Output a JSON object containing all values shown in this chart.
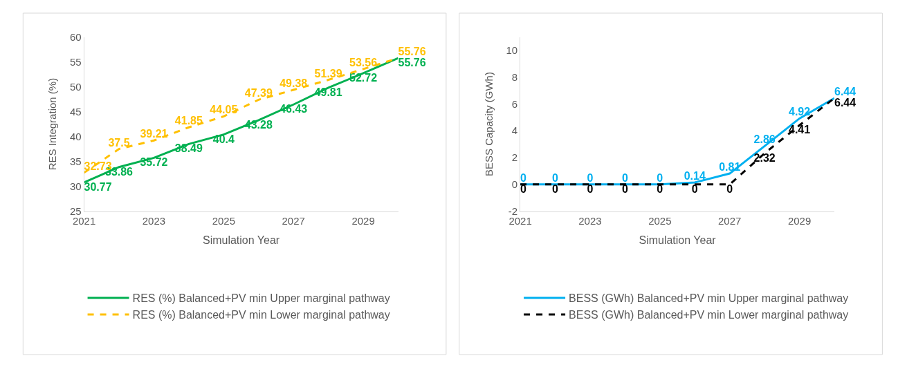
{
  "chart_data": [
    {
      "type": "line",
      "xlabel": "Simulation Year",
      "ylabel": "RES Integration (%)",
      "x": [
        2021,
        2022,
        2023,
        2024,
        2025,
        2026,
        2027,
        2028,
        2029,
        2030
      ],
      "xlim": [
        2021,
        2030
      ],
      "xticks": [
        2021,
        2023,
        2025,
        2027,
        2029
      ],
      "ylim": [
        25,
        60
      ],
      "yticks": [
        25,
        30,
        35,
        40,
        45,
        50,
        55,
        60
      ],
      "grid": false,
      "legend": "bottom",
      "data_labels": true,
      "marker": "none",
      "series": [
        {
          "name": "RES (%) Balanced+PV min Upper marginal pathway",
          "color": "#00b050",
          "line_style": "solid",
          "values": [
            30.77,
            33.86,
            35.72,
            38.49,
            40.4,
            43.28,
            46.43,
            49.81,
            52.72,
            55.76
          ]
        },
        {
          "name": "RES (%) Balanced+PV min Lower marginal pathway",
          "color": "#ffc000",
          "line_style": "dashed",
          "values": [
            32.73,
            37.5,
            39.21,
            41.85,
            44.05,
            47.39,
            49.38,
            51.39,
            53.56,
            55.76
          ]
        }
      ]
    },
    {
      "type": "line",
      "xlabel": "Simulation Year",
      "ylabel": "BESS Capacity (GWh)",
      "x": [
        2021,
        2022,
        2023,
        2024,
        2025,
        2026,
        2027,
        2028,
        2029,
        2030
      ],
      "xlim": [
        2021,
        2030
      ],
      "xticks": [
        2021,
        2023,
        2025,
        2027,
        2029
      ],
      "ylim": [
        -2,
        11
      ],
      "yticks": [
        -2,
        0,
        2,
        4,
        6,
        8,
        10
      ],
      "grid": false,
      "legend": "bottom",
      "data_labels": true,
      "marker": "none",
      "series": [
        {
          "name": "BESS (GWh) Balanced+PV min Upper marginal pathway",
          "color": "#00b0f0",
          "line_style": "solid",
          "values": [
            0,
            0,
            0,
            0,
            0,
            0.14,
            0.81,
            2.86,
            4.92,
            6.44
          ]
        },
        {
          "name": "BESS (GWh) Balanced+PV min Lower marginal pathway",
          "color": "#000000",
          "line_style": "dashed",
          "values": [
            0,
            0,
            0,
            0,
            0,
            0,
            0,
            2.32,
            4.41,
            6.44
          ]
        }
      ]
    }
  ]
}
